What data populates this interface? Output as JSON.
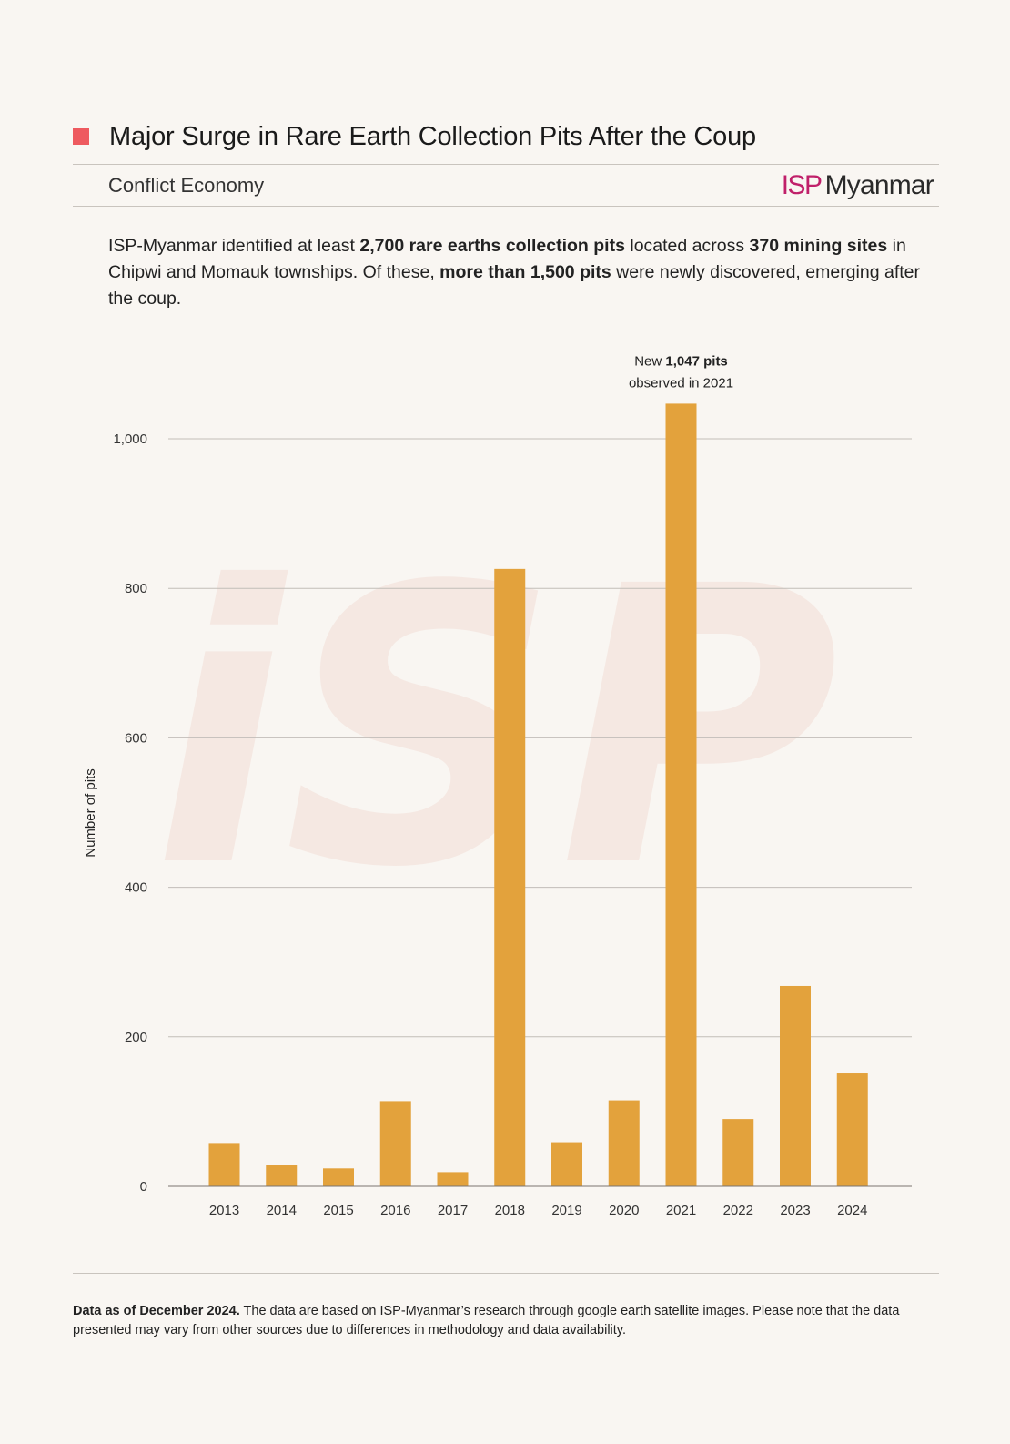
{
  "header": {
    "title": "Major Surge in Rare Earth Collection Pits After the Coup",
    "section": "Conflict Economy",
    "logo_isp": "ISP",
    "logo_name": "Myanmar"
  },
  "intro": {
    "p1": "ISP-Myanmar identified at least ",
    "b1": "2,700 rare earths collection pits",
    "p2": " located across ",
    "b2": "370 mining sites",
    "p3": " in Chipwi and Momauk townships. Of these, ",
    "b3": "more than 1,500 pits",
    "p4": " were newly discovered, emerging after the coup."
  },
  "watermark": "iSP",
  "chart_data": {
    "type": "bar",
    "title": "Major Surge in Rare Earth Collection Pits After the Coup",
    "xlabel": "",
    "ylabel": "Number of pits",
    "ylim": [
      0,
      1000
    ],
    "yticks": [
      0,
      200,
      400,
      600,
      800,
      1000
    ],
    "ytick_labels": [
      "0",
      "200",
      "400",
      "600",
      "800",
      "1,000"
    ],
    "categories": [
      "2013",
      "2014",
      "2015",
      "2016",
      "2017",
      "2018",
      "2019",
      "2020",
      "2021",
      "2022",
      "2023",
      "2024"
    ],
    "values": [
      58,
      28,
      24,
      114,
      19,
      826,
      59,
      115,
      1047,
      90,
      268,
      151
    ],
    "bar_color": "#e3a23c",
    "annotation": {
      "category": "2021",
      "line1_prefix": "New ",
      "line1_bold": "1,047 pits",
      "line2": "observed in 2021"
    }
  },
  "footer": {
    "bold": "Data as of December 2024.",
    "text": " The data are based on ISP-Myanmar’s research through google earth satellite images. Please note that the data presented may vary from other sources due to differences in methodology and data availability."
  }
}
